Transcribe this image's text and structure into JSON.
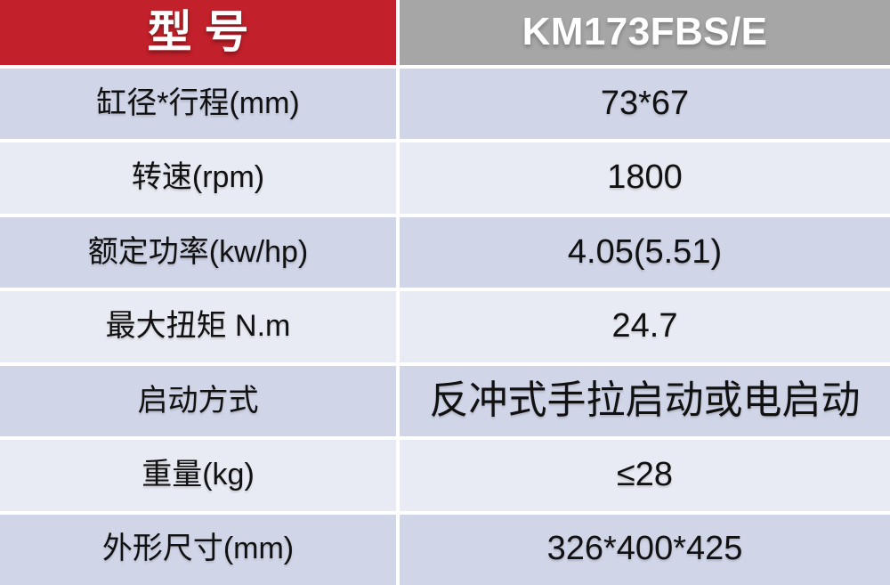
{
  "table": {
    "header": {
      "model_label": "型号",
      "model_value": "KM173FBS/E"
    },
    "rows": [
      {
        "label": "缸径*行程(mm)",
        "value": "73*67"
      },
      {
        "label": "转速(rpm)",
        "value": "1800"
      },
      {
        "label": "额定功率(kw/hp)",
        "value": "4.05(5.51)"
      },
      {
        "label": "最大扭矩 N.m",
        "value": "24.7"
      },
      {
        "label": "启动方式",
        "value": "反冲式手拉启动或电启动"
      },
      {
        "label": "重量(kg)",
        "value": "≤28"
      },
      {
        "label": "外形尺寸(mm)",
        "value": "326*400*425"
      }
    ],
    "colors": {
      "header_label_bg": "#c2202a",
      "header_value_bg": "#a6a6a6",
      "row_blue": "#d0d5e8",
      "row_light": "#e9ebf4",
      "gap_color": "#ffffff",
      "header_text": "#ffffff",
      "body_text": "#111111"
    }
  }
}
